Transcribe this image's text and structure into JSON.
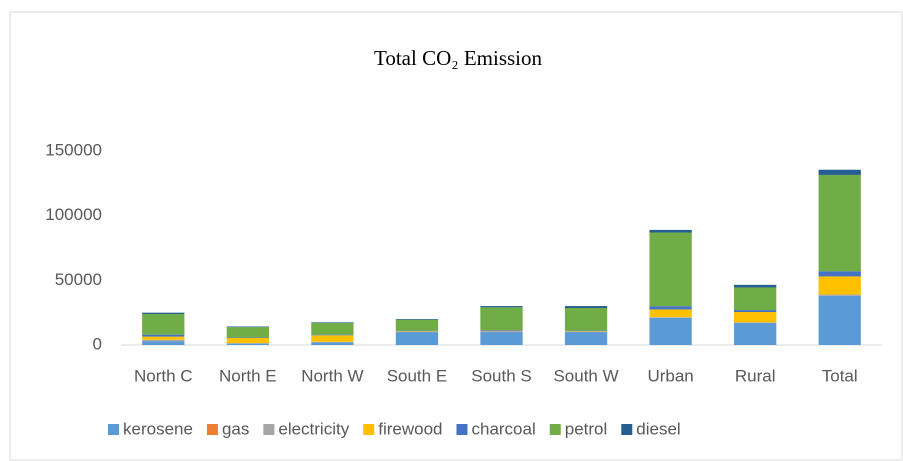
{
  "chart_data": {
    "type": "bar",
    "stacked": true,
    "title": "Total CO₂ Emission",
    "categories": [
      "North C",
      "North E",
      "North W",
      "South E",
      "South S",
      "South W",
      "Urban",
      "Rural",
      "Total"
    ],
    "series": [
      {
        "name": "kerosene",
        "color": "#5b9bd5",
        "values": [
          3000,
          1000,
          2000,
          10000,
          10000,
          10000,
          21000,
          17000,
          38000
        ]
      },
      {
        "name": "gas",
        "color": "#ed7d31",
        "values": [
          0,
          0,
          0,
          0,
          0,
          0,
          0,
          0,
          0
        ]
      },
      {
        "name": "electricity",
        "color": "#a5a5a5",
        "values": [
          1000,
          500,
          500,
          500,
          800,
          500,
          500,
          500,
          1000
        ]
      },
      {
        "name": "firewood",
        "color": "#ffc000",
        "values": [
          2500,
          4000,
          5000,
          300,
          300,
          300,
          6000,
          8000,
          14000
        ]
      },
      {
        "name": "charcoal",
        "color": "#4472c4",
        "values": [
          1500,
          300,
          500,
          300,
          500,
          300,
          2500,
          1500,
          4000
        ]
      },
      {
        "name": "petrol",
        "color": "#70ad47",
        "values": [
          16000,
          8000,
          9000,
          8500,
          17500,
          17500,
          57000,
          17500,
          74500
        ]
      },
      {
        "name": "diesel",
        "color": "#255e91",
        "values": [
          1000,
          500,
          500,
          500,
          1000,
          1500,
          2000,
          2000,
          4000
        ]
      }
    ],
    "ylim": [
      0,
      150000
    ],
    "yticks": [
      0,
      50000,
      100000,
      150000
    ],
    "grid": false,
    "legend": "bottom"
  }
}
